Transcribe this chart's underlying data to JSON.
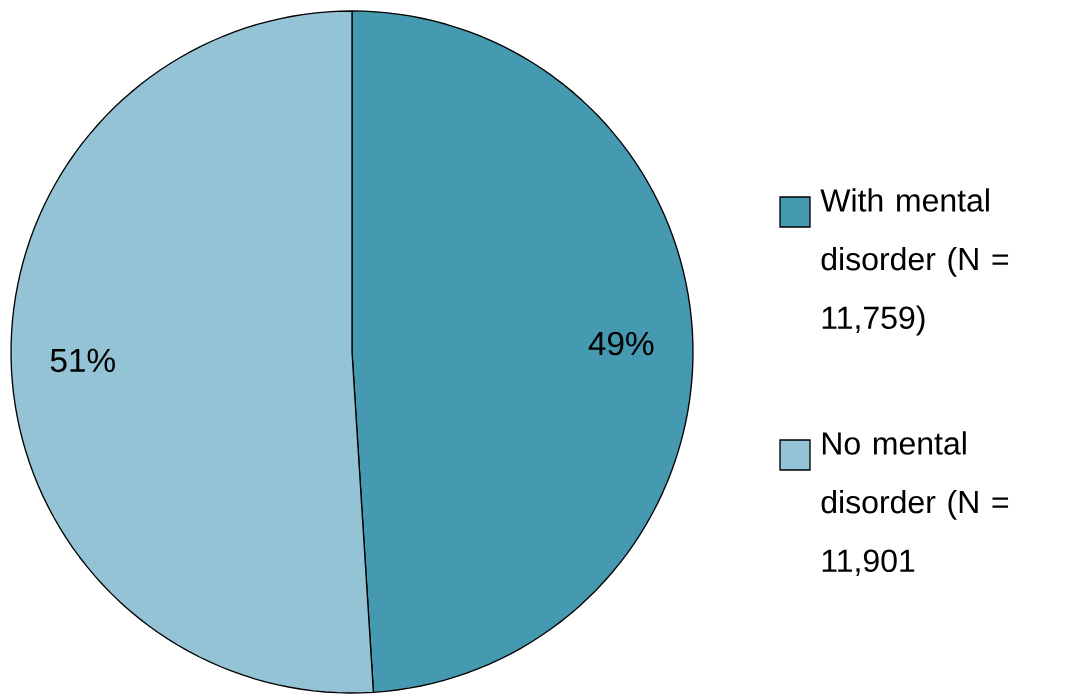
{
  "chart_data": {
    "type": "pie",
    "categories": [
      "With mental disorder (N = 11,759)",
      "No mental disorder (N = 11,901"
    ],
    "values": [
      49,
      51
    ],
    "colors": [
      "#4599b1",
      "#93c3d4"
    ],
    "value_labels": [
      "49%",
      "51%"
    ],
    "legend": "right"
  }
}
